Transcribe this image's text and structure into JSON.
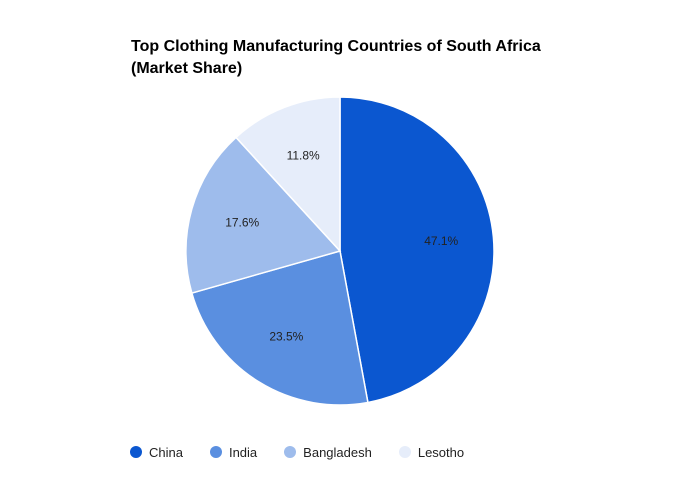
{
  "chart_data": {
    "type": "pie",
    "title_lines": [
      "Top Clothing Manufacturing Countries of South Africa",
      "(Market Share)"
    ],
    "categories": [
      "China",
      "India",
      "Bangladesh",
      "Lesotho"
    ],
    "values": [
      47.1,
      23.5,
      17.6,
      11.8
    ],
    "value_labels": [
      "47.1%",
      "23.5%",
      "17.6%",
      "11.8%"
    ],
    "colors": [
      "#0b57d0",
      "#5a8fe0",
      "#9ebcec",
      "#e6edfa"
    ],
    "legend_position": "bottom-left"
  }
}
